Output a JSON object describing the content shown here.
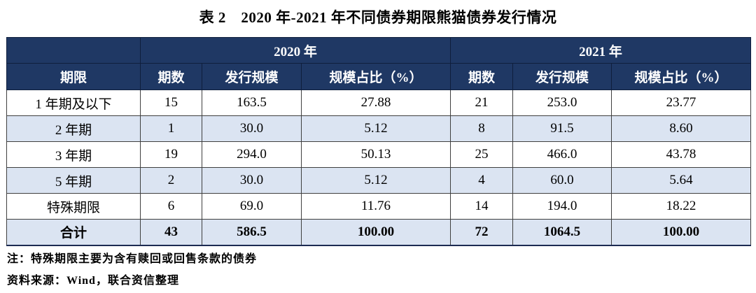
{
  "title": "表 2　2020 年-2021 年不同债券期限熊猫债券发行情况",
  "table": {
    "year_headers": [
      "2020 年",
      "2021 年"
    ],
    "col_headers": [
      "期限",
      "期数",
      "发行规模",
      "规模占比（%）",
      "期数",
      "发行规模",
      "规模占比（%）"
    ],
    "rows": [
      [
        "1 年期及以下",
        "15",
        "163.5",
        "27.88",
        "21",
        "253.0",
        "23.77"
      ],
      [
        "2 年期",
        "1",
        "30.0",
        "5.12",
        "8",
        "91.5",
        "8.60"
      ],
      [
        "3 年期",
        "19",
        "294.0",
        "50.13",
        "25",
        "466.0",
        "43.78"
      ],
      [
        "5 年期",
        "2",
        "30.0",
        "5.12",
        "4",
        "60.0",
        "5.64"
      ],
      [
        "特殊期限",
        "6",
        "69.0",
        "11.76",
        "14",
        "194.0",
        "18.22"
      ],
      [
        "合计",
        "43",
        "586.5",
        "100.00",
        "72",
        "1064.5",
        "100.00"
      ]
    ]
  },
  "notes": [
    "注：特殊期限主要为含有赎回或回售条款的债券",
    "资料来源：Wind，联合资信整理"
  ],
  "colors": {
    "header_bg": "#1F3864",
    "header_text": "#FFFFFF",
    "alt_row_bg": "#DBE4F2",
    "row_bg": "#FFFFFF",
    "border": "#3F3F3F"
  }
}
